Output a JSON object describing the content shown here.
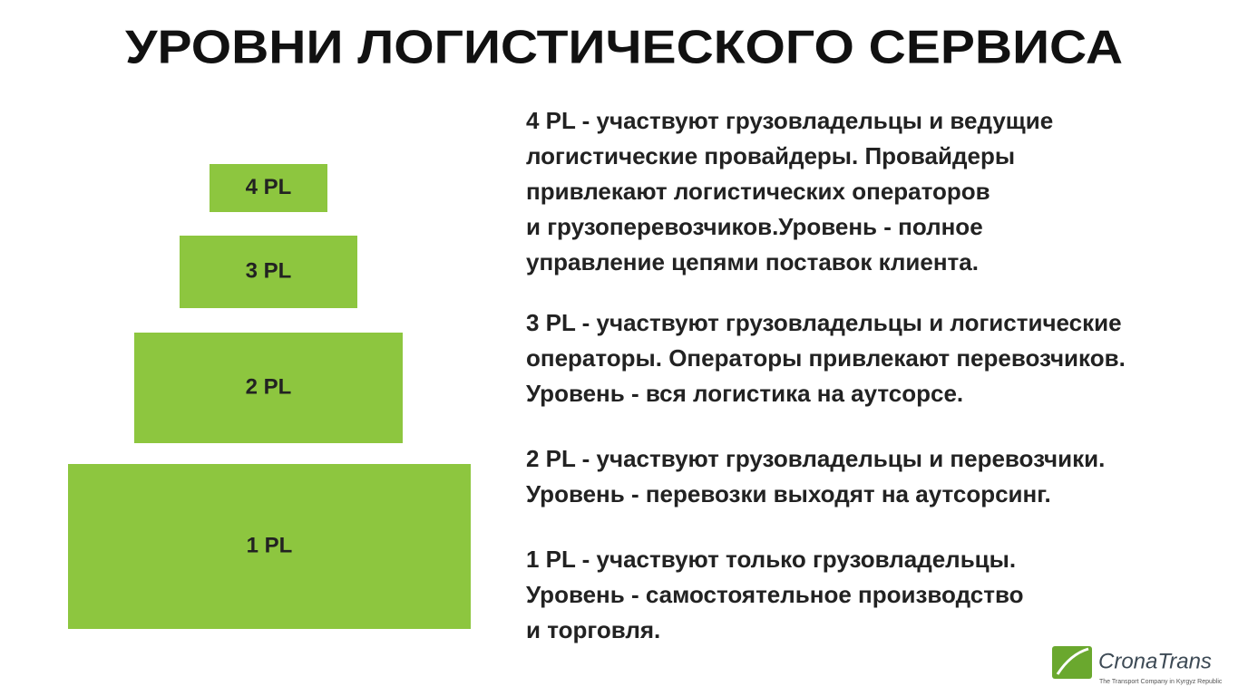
{
  "title": "УРОВНИ ЛОГИСТИЧЕСКОГО СЕРВИСА",
  "levels": [
    {
      "label": "4 PL"
    },
    {
      "label": "3 PL"
    },
    {
      "label": "2 PL"
    },
    {
      "label": "1 PL"
    }
  ],
  "descriptions": [
    {
      "lines": [
        "4 PL - участвуют грузовладельцы и ведущие",
        "логистические провайдеры. Провайдеры",
        "привлекают логистических операторов",
        "и грузоперевозчиков.Уровень - полное",
        "управление цепями поставок клиента."
      ]
    },
    {
      "lines": [
        "3 PL - участвуют грузовладельцы и логистические",
        "операторы. Операторы привлекают перевозчиков.",
        "Уровень - вся логистика на аутсорсе."
      ]
    },
    {
      "lines": [
        "2 PL - участвуют грузовладельцы и перевозчики.",
        "Уровень - перевозки выходят на аутсорсинг."
      ]
    },
    {
      "lines": [
        "1 PL - участвуют только грузовладельцы.",
        "Уровень - самостоятельное производство",
        "и торговля."
      ]
    }
  ],
  "logo": {
    "name": "CronaTrans",
    "tagline": "The Transport Company in Kyrgyz Republic"
  }
}
